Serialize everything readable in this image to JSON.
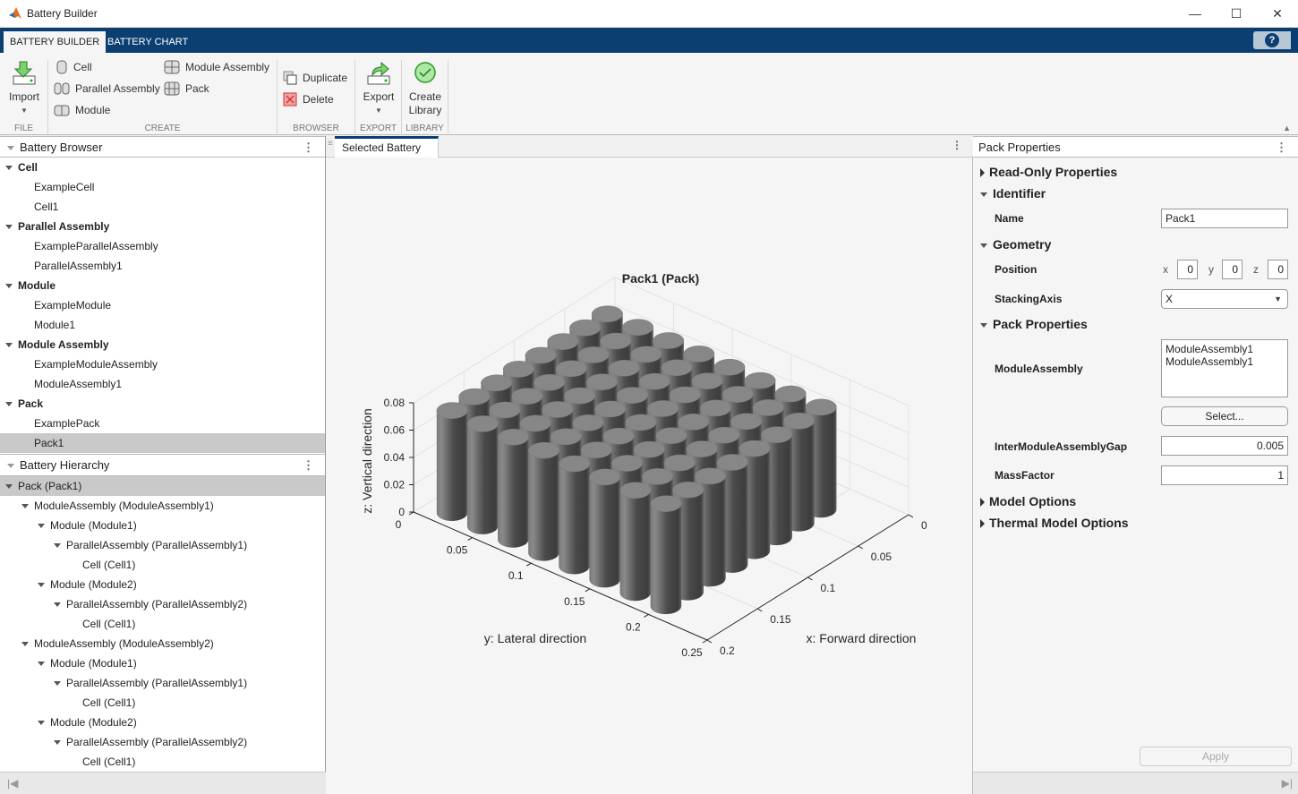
{
  "window": {
    "title": "Battery Builder",
    "minimize": "—",
    "maximize": "☐",
    "close": "✕"
  },
  "tabs": [
    {
      "label": "BATTERY BUILDER",
      "active": true
    },
    {
      "label": "BATTERY CHART",
      "active": false
    }
  ],
  "help_label": "?",
  "ribbon": {
    "file": {
      "group": "FILE",
      "import": "Import"
    },
    "create": {
      "group": "CREATE",
      "cell": "Cell",
      "parallel_assembly": "Parallel Assembly",
      "module": "Module",
      "module_assembly": "Module Assembly",
      "pack": "Pack"
    },
    "browser": {
      "group": "BROWSER",
      "duplicate": "Duplicate",
      "delete": "Delete"
    },
    "export": {
      "group": "EXPORT",
      "export": "Export"
    },
    "library": {
      "group": "LIBRARY",
      "create_library_1": "Create",
      "create_library_2": "Library"
    }
  },
  "battery_browser": {
    "title": "Battery Browser",
    "items": [
      {
        "label": "Cell",
        "level": 0,
        "group": true
      },
      {
        "label": "ExampleCell",
        "level": 1
      },
      {
        "label": "Cell1",
        "level": 1
      },
      {
        "label": "Parallel Assembly",
        "level": 0,
        "group": true
      },
      {
        "label": "ExampleParallelAssembly",
        "level": 1
      },
      {
        "label": "ParallelAssembly1",
        "level": 1
      },
      {
        "label": "Module",
        "level": 0,
        "group": true
      },
      {
        "label": "ExampleModule",
        "level": 1
      },
      {
        "label": "Module1",
        "level": 1
      },
      {
        "label": "Module Assembly",
        "level": 0,
        "group": true
      },
      {
        "label": "ExampleModuleAssembly",
        "level": 1
      },
      {
        "label": "ModuleAssembly1",
        "level": 1
      },
      {
        "label": "Pack",
        "level": 0,
        "group": true
      },
      {
        "label": "ExamplePack",
        "level": 1
      },
      {
        "label": "Pack1",
        "level": 1,
        "selected": true
      }
    ]
  },
  "battery_hierarchy": {
    "title": "Battery Hierarchy",
    "items": [
      {
        "label": "Pack (Pack1)",
        "level": 0,
        "expand": true,
        "selected": true
      },
      {
        "label": "ModuleAssembly (ModuleAssembly1)",
        "level": 1,
        "expand": true
      },
      {
        "label": "Module (Module1)",
        "level": 2,
        "expand": true
      },
      {
        "label": "ParallelAssembly (ParallelAssembly1)",
        "level": 3,
        "expand": true
      },
      {
        "label": "Cell (Cell1)",
        "level": 4
      },
      {
        "label": "Module (Module2)",
        "level": 2,
        "expand": true
      },
      {
        "label": "ParallelAssembly (ParallelAssembly2)",
        "level": 3,
        "expand": true
      },
      {
        "label": "Cell (Cell1)",
        "level": 4
      },
      {
        "label": "ModuleAssembly (ModuleAssembly2)",
        "level": 1,
        "expand": true
      },
      {
        "label": "Module (Module1)",
        "level": 2,
        "expand": true
      },
      {
        "label": "ParallelAssembly (ParallelAssembly1)",
        "level": 3,
        "expand": true
      },
      {
        "label": "Cell (Cell1)",
        "level": 4
      },
      {
        "label": "Module (Module2)",
        "level": 2,
        "expand": true
      },
      {
        "label": "ParallelAssembly (ParallelAssembly2)",
        "level": 3,
        "expand": true
      },
      {
        "label": "Cell (Cell1)",
        "level": 4
      }
    ]
  },
  "center": {
    "tab": "Selected Battery"
  },
  "chart_data": {
    "type": "3d-cylinders",
    "title": "Pack1 (Pack)",
    "xlabel": "x: Forward direction",
    "ylabel": "y: Lateral direction",
    "zlabel": "z: Vertical direction",
    "xlim": [
      0,
      0.2
    ],
    "ylim": [
      0,
      0.25
    ],
    "zlim": [
      0,
      0.08
    ],
    "xticks": [
      "0",
      "0.05",
      "0.1",
      "0.15",
      "0.2"
    ],
    "yticks": [
      "0",
      "0.05",
      "0.1",
      "0.15",
      "0.2",
      "0.25"
    ],
    "zticks": [
      "0",
      "0.02",
      "0.04",
      "0.06",
      "0.08"
    ],
    "cell_grid": {
      "rows_x": 8,
      "cols_y": 8,
      "cell_height": 0.075,
      "cell_radius": 0.01
    },
    "grid": true,
    "cell_color": "#6e6e6e"
  },
  "properties": {
    "title": "Pack Properties",
    "read_only": "Read-Only Properties",
    "identifier": "Identifier",
    "name_label": "Name",
    "name_value": "Pack1",
    "geometry": "Geometry",
    "position_label": "Position",
    "pos_x_label": "x",
    "pos_x": "0",
    "pos_y_label": "y",
    "pos_y": "0",
    "pos_z_label": "z",
    "pos_z": "0",
    "stacking_label": "StackingAxis",
    "stacking_value": "X",
    "pack_properties": "Pack Properties",
    "module_assembly_label": "ModuleAssembly",
    "module_assembly_list": [
      "ModuleAssembly1",
      "ModuleAssembly1"
    ],
    "select_button": "Select...",
    "gap_label": "InterModuleAssemblyGap",
    "gap_value": "0.005",
    "mass_label": "MassFactor",
    "mass_value": "1",
    "model_options": "Model Options",
    "thermal_options": "Thermal Model Options",
    "apply": "Apply"
  },
  "colors": {
    "tabbar": "#0b3f71",
    "selection": "#c9c9c9",
    "accent": "#0b3f71"
  }
}
